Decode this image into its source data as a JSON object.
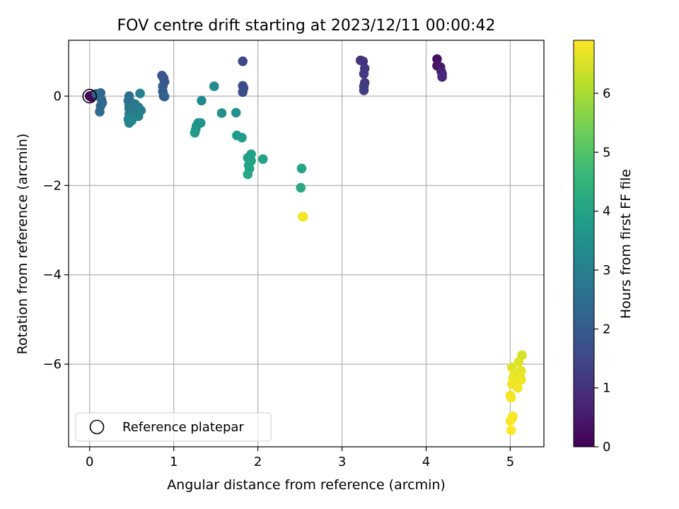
{
  "chart_data": {
    "type": "scatter",
    "title": "FOV centre drift starting at 2023/12/11 00:00:42",
    "xlabel": "Angular distance from reference (arcmin)",
    "ylabel": "Rotation from reference (arcmin)",
    "xlim": [
      -0.25,
      5.4
    ],
    "ylim": [
      -7.85,
      1.25
    ],
    "xticks": [
      0,
      1,
      2,
      3,
      4,
      5
    ],
    "xtick_labels": [
      "0",
      "1",
      "2",
      "3",
      "4",
      "5"
    ],
    "yticks": [
      0,
      -2,
      -4,
      -6
    ],
    "ytick_labels": [
      "0",
      "−2",
      "−4",
      "−6"
    ],
    "grid": true,
    "legend": {
      "position": "lower-left",
      "label": "Reference platepar"
    },
    "reference_point": {
      "x": 0,
      "y": 0
    },
    "colorbar": {
      "label": "Hours from first FF file",
      "range": [
        0,
        6.9
      ],
      "ticks": [
        0,
        1,
        2,
        3,
        4,
        5,
        6
      ],
      "tick_labels": [
        "0",
        "1",
        "2",
        "3",
        "4",
        "5",
        "6"
      ],
      "colormap": [
        "#440154",
        "#482878",
        "#3e4989",
        "#31688e",
        "#26828e",
        "#1f9e89",
        "#35b779",
        "#6ece58",
        "#b5de2b",
        "#fde725"
      ]
    },
    "points": [
      {
        "x": 0.0,
        "y": 0.0,
        "h": 0.0
      },
      {
        "x": 0.02,
        "y": -0.02,
        "h": 0.05
      },
      {
        "x": 0.05,
        "y": 0.03,
        "h": 0.1
      },
      {
        "x": 4.13,
        "y": 0.83,
        "h": 0.3
      },
      {
        "x": 4.13,
        "y": 0.68,
        "h": 0.4
      },
      {
        "x": 4.17,
        "y": 0.65,
        "h": 0.5
      },
      {
        "x": 4.18,
        "y": 0.55,
        "h": 0.6
      },
      {
        "x": 4.19,
        "y": 0.5,
        "h": 0.7
      },
      {
        "x": 4.19,
        "y": 0.43,
        "h": 0.8
      },
      {
        "x": 3.22,
        "y": 0.8,
        "h": 1.0
      },
      {
        "x": 3.25,
        "y": 0.78,
        "h": 1.05
      },
      {
        "x": 3.27,
        "y": 0.62,
        "h": 1.1
      },
      {
        "x": 3.26,
        "y": 0.5,
        "h": 1.15
      },
      {
        "x": 3.27,
        "y": 0.3,
        "h": 1.2
      },
      {
        "x": 3.26,
        "y": 0.22,
        "h": 1.25
      },
      {
        "x": 3.26,
        "y": 0.13,
        "h": 1.3
      },
      {
        "x": 1.82,
        "y": 0.78,
        "h": 1.5
      },
      {
        "x": 1.82,
        "y": 0.23,
        "h": 1.55
      },
      {
        "x": 1.83,
        "y": 0.18,
        "h": 1.6
      },
      {
        "x": 1.82,
        "y": 0.09,
        "h": 1.65
      },
      {
        "x": 0.86,
        "y": 0.46,
        "h": 1.8
      },
      {
        "x": 0.88,
        "y": 0.4,
        "h": 1.85
      },
      {
        "x": 0.89,
        "y": 0.32,
        "h": 1.9
      },
      {
        "x": 0.87,
        "y": 0.22,
        "h": 1.95
      },
      {
        "x": 0.87,
        "y": 0.1,
        "h": 2.0
      },
      {
        "x": 0.88,
        "y": 0.0,
        "h": 2.05
      },
      {
        "x": 0.89,
        "y": -0.01,
        "h": 2.1
      },
      {
        "x": 0.08,
        "y": 0.05,
        "h": 2.1
      },
      {
        "x": 0.13,
        "y": 0.07,
        "h": 2.15
      },
      {
        "x": 0.14,
        "y": -0.08,
        "h": 2.2
      },
      {
        "x": 0.15,
        "y": -0.15,
        "h": 2.25
      },
      {
        "x": 0.13,
        "y": -0.22,
        "h": 2.3
      },
      {
        "x": 0.12,
        "y": -0.35,
        "h": 2.35
      },
      {
        "x": 0.1,
        "y": 0.02,
        "h": 2.4
      },
      {
        "x": 0.47,
        "y": 0.0,
        "h": 2.5
      },
      {
        "x": 0.46,
        "y": -0.1,
        "h": 2.55
      },
      {
        "x": 0.5,
        "y": -0.15,
        "h": 2.6
      },
      {
        "x": 0.47,
        "y": -0.2,
        "h": 2.65
      },
      {
        "x": 0.54,
        "y": -0.18,
        "h": 2.7
      },
      {
        "x": 0.47,
        "y": -0.28,
        "h": 2.75
      },
      {
        "x": 0.52,
        "y": -0.3,
        "h": 2.8
      },
      {
        "x": 0.58,
        "y": -0.25,
        "h": 2.85
      },
      {
        "x": 0.61,
        "y": -0.32,
        "h": 2.9
      },
      {
        "x": 0.47,
        "y": -0.4,
        "h": 2.95
      },
      {
        "x": 0.5,
        "y": -0.45,
        "h": 3.0
      },
      {
        "x": 0.58,
        "y": -0.45,
        "h": 3.05
      },
      {
        "x": 0.46,
        "y": -0.52,
        "h": 3.1
      },
      {
        "x": 0.47,
        "y": -0.6,
        "h": 3.15
      },
      {
        "x": 0.5,
        "y": -0.55,
        "h": 3.2
      },
      {
        "x": 0.6,
        "y": 0.06,
        "h": 3.0
      },
      {
        "x": 1.33,
        "y": -0.1,
        "h": 3.3
      },
      {
        "x": 1.48,
        "y": 0.22,
        "h": 3.35
      },
      {
        "x": 1.57,
        "y": -0.38,
        "h": 3.4
      },
      {
        "x": 1.74,
        "y": -0.37,
        "h": 3.45
      },
      {
        "x": 1.29,
        "y": -0.6,
        "h": 3.5
      },
      {
        "x": 1.32,
        "y": -0.6,
        "h": 3.55
      },
      {
        "x": 1.27,
        "y": -0.67,
        "h": 3.6
      },
      {
        "x": 1.26,
        "y": -0.75,
        "h": 3.65
      },
      {
        "x": 1.25,
        "y": -0.82,
        "h": 3.7
      },
      {
        "x": 1.75,
        "y": -0.88,
        "h": 3.75
      },
      {
        "x": 1.81,
        "y": -0.93,
        "h": 3.8
      },
      {
        "x": 1.92,
        "y": -1.3,
        "h": 3.85
      },
      {
        "x": 1.88,
        "y": -1.38,
        "h": 3.9
      },
      {
        "x": 1.92,
        "y": -1.45,
        "h": 3.95
      },
      {
        "x": 1.89,
        "y": -1.55,
        "h": 4.0
      },
      {
        "x": 1.9,
        "y": -1.62,
        "h": 4.05
      },
      {
        "x": 1.88,
        "y": -1.75,
        "h": 4.1
      },
      {
        "x": 2.06,
        "y": -1.41,
        "h": 4.0
      },
      {
        "x": 2.52,
        "y": -1.62,
        "h": 4.05
      },
      {
        "x": 2.51,
        "y": -2.05,
        "h": 4.1
      },
      {
        "x": 2.53,
        "y": -2.7,
        "h": 6.75
      },
      {
        "x": 2.54,
        "y": -2.7,
        "h": 6.8
      },
      {
        "x": 5.14,
        "y": -5.8,
        "h": 6.5
      },
      {
        "x": 5.1,
        "y": -5.95,
        "h": 6.55
      },
      {
        "x": 5.02,
        "y": -6.07,
        "h": 6.6
      },
      {
        "x": 5.13,
        "y": -6.15,
        "h": 6.62
      },
      {
        "x": 5.05,
        "y": -6.22,
        "h": 6.65
      },
      {
        "x": 5.12,
        "y": -6.28,
        "h": 6.68
      },
      {
        "x": 5.03,
        "y": -6.32,
        "h": 6.7
      },
      {
        "x": 5.13,
        "y": -6.35,
        "h": 6.72
      },
      {
        "x": 5.07,
        "y": -6.4,
        "h": 6.74
      },
      {
        "x": 5.02,
        "y": -6.45,
        "h": 6.76
      },
      {
        "x": 5.09,
        "y": -6.53,
        "h": 6.78
      },
      {
        "x": 5.0,
        "y": -6.7,
        "h": 6.8
      },
      {
        "x": 5.01,
        "y": -6.75,
        "h": 6.82
      },
      {
        "x": 5.03,
        "y": -7.17,
        "h": 6.84
      },
      {
        "x": 5.02,
        "y": -7.22,
        "h": 6.86
      },
      {
        "x": 5.0,
        "y": -7.27,
        "h": 6.88
      },
      {
        "x": 5.01,
        "y": -7.48,
        "h": 6.9
      }
    ]
  }
}
